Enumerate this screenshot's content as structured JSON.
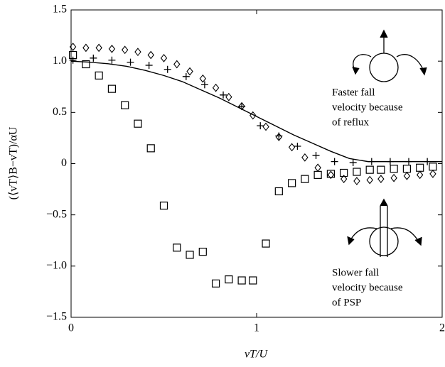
{
  "chart_data": {
    "type": "scatter",
    "x_label": "vT/U",
    "y_label": "(⟨vT⟩B−vT)/αU",
    "xlim": [
      0,
      2
    ],
    "xticks": [
      0,
      1,
      2
    ],
    "ylim": [
      -1.5,
      1.5
    ],
    "yticks": [
      {
        "value": -1.5,
        "label": "−1.5"
      },
      {
        "value": -1,
        "label": "−1.0"
      },
      {
        "value": -0.5,
        "label": "−0.5"
      },
      0,
      0.5,
      {
        "value": 1,
        "label": "1.0"
      },
      1.5
    ],
    "grid": false,
    "series": [
      {
        "marker": "square",
        "color": "#000000",
        "x": [
          0.01,
          0.08,
          0.15,
          0.22,
          0.29,
          0.36,
          0.43,
          0.5,
          0.57,
          0.64,
          0.71,
          0.78,
          0.85,
          0.92,
          0.98,
          1.05,
          1.12,
          1.19,
          1.26,
          1.33,
          1.4,
          1.47,
          1.54,
          1.61,
          1.67,
          1.74,
          1.81,
          1.88,
          1.95
        ],
        "values": [
          1.06,
          0.97,
          0.86,
          0.73,
          0.57,
          0.39,
          0.15,
          -0.41,
          -0.82,
          -0.89,
          -0.86,
          -1.17,
          -1.13,
          -1.14,
          -1.14,
          -0.78,
          -0.27,
          -0.19,
          -0.15,
          -0.11,
          -0.1,
          -0.09,
          -0.08,
          -0.06,
          -0.06,
          -0.05,
          -0.05,
          -0.04,
          -0.03
        ]
      },
      {
        "marker": "diamond",
        "color": "#000000",
        "x": [
          0.01,
          0.08,
          0.15,
          0.22,
          0.29,
          0.36,
          0.43,
          0.5,
          0.57,
          0.64,
          0.71,
          0.78,
          0.85,
          0.92,
          0.98,
          1.05,
          1.12,
          1.19,
          1.26,
          1.33,
          1.4,
          1.47,
          1.54,
          1.61,
          1.67,
          1.74,
          1.81,
          1.88,
          1.95
        ],
        "values": [
          1.14,
          1.13,
          1.13,
          1.12,
          1.11,
          1.09,
          1.06,
          1.03,
          0.97,
          0.9,
          0.83,
          0.74,
          0.65,
          0.56,
          0.47,
          0.36,
          0.26,
          0.16,
          0.06,
          -0.04,
          -0.11,
          -0.15,
          -0.17,
          -0.16,
          -0.15,
          -0.14,
          -0.12,
          -0.11,
          -0.1
        ]
      },
      {
        "marker": "plus",
        "color": "#000000",
        "x": [
          0.01,
          0.12,
          0.22,
          0.32,
          0.42,
          0.52,
          0.62,
          0.72,
          0.82,
          0.92,
          1.02,
          1.12,
          1.22,
          1.32,
          1.42,
          1.52,
          1.62,
          1.72,
          1.82,
          1.92
        ],
        "values": [
          1.01,
          1.03,
          1.01,
          0.99,
          0.96,
          0.92,
          0.85,
          0.77,
          0.67,
          0.56,
          0.37,
          0.27,
          0.17,
          0.08,
          0.02,
          0.01,
          0.02,
          0.02,
          0.02,
          0.02
        ]
      },
      {
        "marker": "line",
        "color": "#000000",
        "x": [
          0,
          0.1,
          0.2,
          0.3,
          0.4,
          0.5,
          0.6,
          0.7,
          0.8,
          0.9,
          1,
          1.1,
          1.2,
          1.3,
          1.4,
          1.5,
          1.6,
          1.7,
          1.8,
          1.9,
          2
        ],
        "values": [
          1,
          0.99,
          0.975,
          0.95,
          0.91,
          0.86,
          0.8,
          0.72,
          0.64,
          0.55,
          0.46,
          0.37,
          0.28,
          0.2,
          0.12,
          0.05,
          0.02,
          0.02,
          0.02,
          0.02,
          0.02
        ]
      }
    ],
    "annotations": [
      {
        "lines": [
          "Faster fall",
          "velocity because",
          "of reflux"
        ]
      },
      {
        "lines": [
          "Slower fall",
          "velocity because",
          "of PSP"
        ]
      }
    ]
  }
}
